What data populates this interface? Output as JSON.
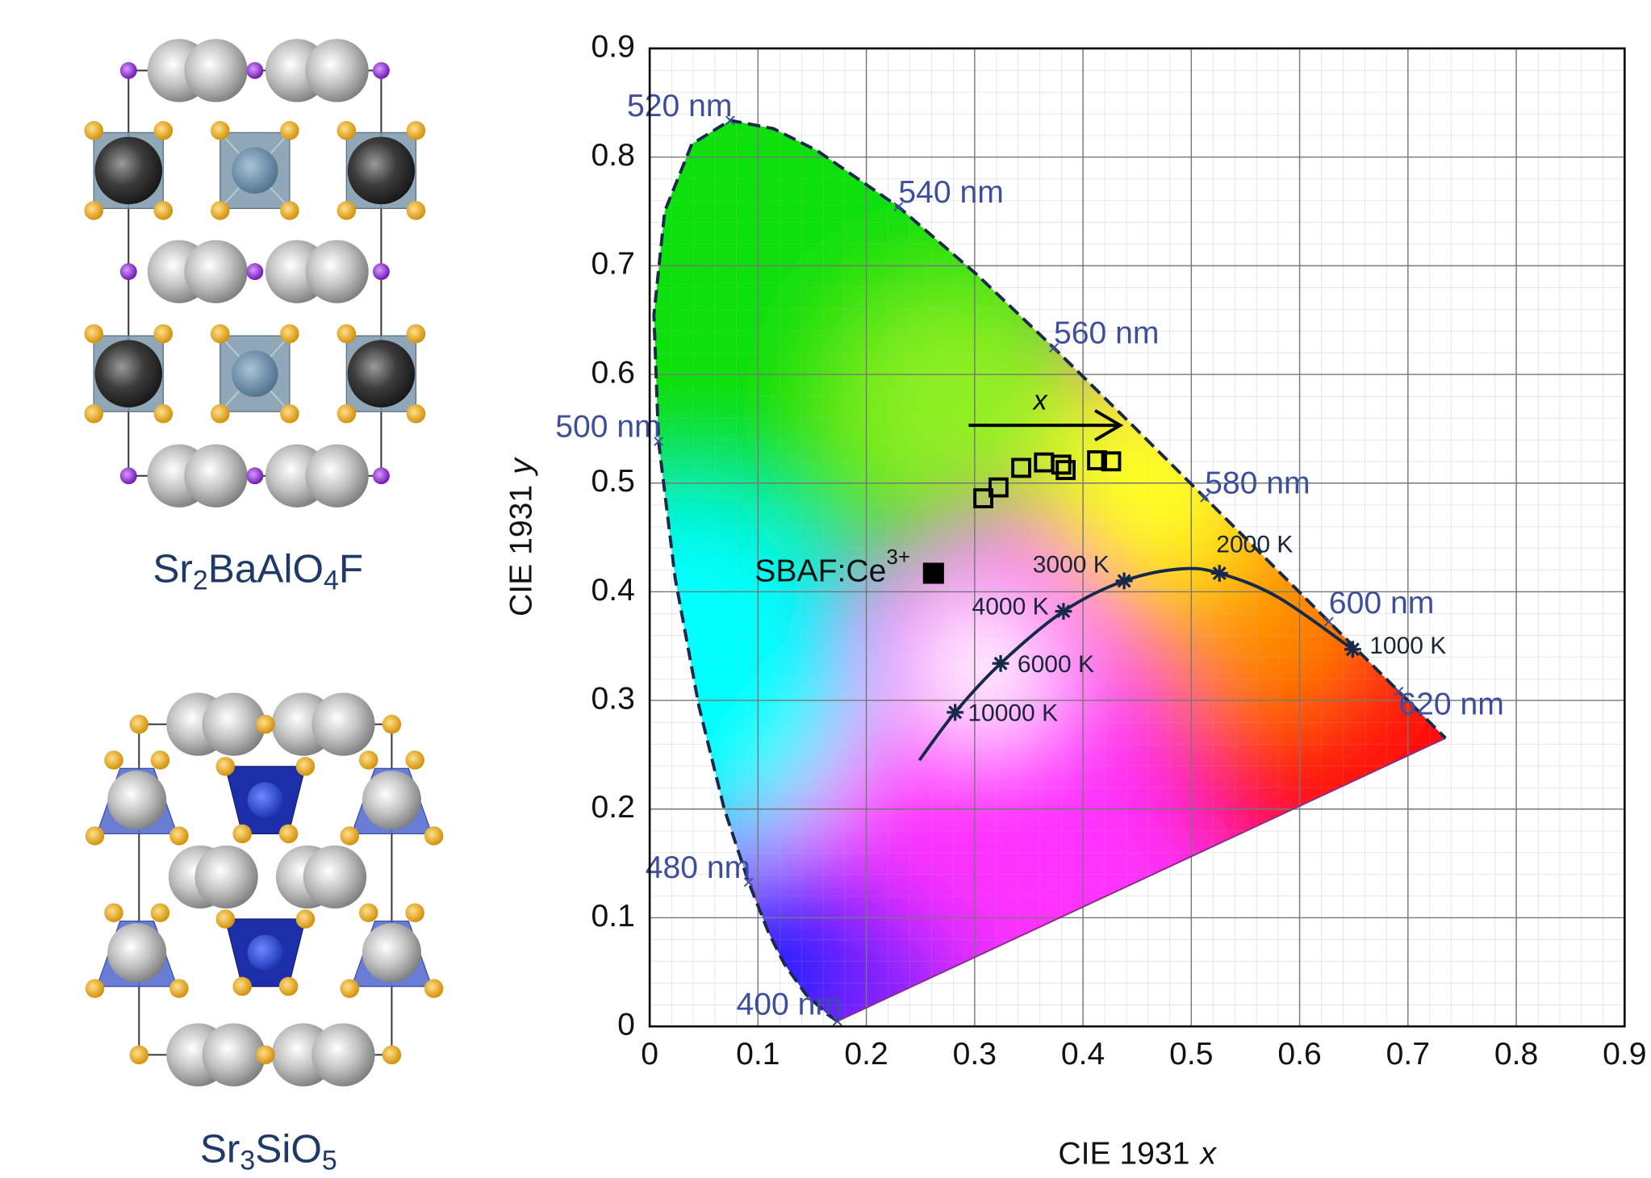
{
  "figure_labels": {
    "top": [
      "Sr",
      "2",
      "BaAlO",
      "4",
      "F"
    ],
    "bottom": [
      "Sr",
      "3",
      "SiO",
      "5"
    ]
  },
  "chart_data": {
    "type": "scatter",
    "x_label": "CIE 1931",
    "x_label_symbol": "x",
    "y_label": "CIE 1931",
    "y_label_symbol": "y",
    "xlim": [
      0,
      0.9
    ],
    "ylim": [
      0,
      0.9
    ],
    "xticks": [
      0,
      0.1,
      0.2,
      0.3,
      0.4,
      0.5,
      0.6,
      0.7,
      0.8,
      0.9
    ],
    "yticks": [
      0,
      0.1,
      0.2,
      0.3,
      0.4,
      0.5,
      0.6,
      0.7,
      0.8,
      0.9
    ],
    "grid": true,
    "spectral_locus": {
      "color": "#1a2a4a",
      "x": [
        0.1733,
        0.1644,
        0.144,
        0.1241,
        0.1096,
        0.0913,
        0.0687,
        0.0454,
        0.0235,
        0.0082,
        0.0039,
        0.0139,
        0.0389,
        0.0743,
        0.1142,
        0.1547,
        0.2296,
        0.3016,
        0.3731,
        0.4441,
        0.5125,
        0.5752,
        0.627,
        0.6915,
        0.719,
        0.7347
      ],
      "y": [
        0.0048,
        0.0109,
        0.0297,
        0.0578,
        0.0868,
        0.1327,
        0.2007,
        0.295,
        0.4127,
        0.5384,
        0.6548,
        0.7502,
        0.812,
        0.8338,
        0.8262,
        0.8059,
        0.7543,
        0.6923,
        0.6245,
        0.5547,
        0.4866,
        0.4242,
        0.3725,
        0.3083,
        0.2809,
        0.2653
      ]
    },
    "wavelength_marks": {
      "color": "#3d4f9c",
      "labels": [
        "400 nm",
        "480 nm",
        "500 nm",
        "520 nm",
        "540 nm",
        "560 nm",
        "580 nm",
        "600 nm",
        "620 nm"
      ],
      "x": [
        0.1733,
        0.0913,
        0.0082,
        0.0743,
        0.2296,
        0.3731,
        0.5125,
        0.627,
        0.6915
      ],
      "y": [
        0.0048,
        0.1327,
        0.5384,
        0.8338,
        0.7543,
        0.6245,
        0.4866,
        0.3725,
        0.3083
      ]
    },
    "planckian_locus": {
      "color": "#152a4a",
      "x": [
        0.249,
        0.282,
        0.324,
        0.382,
        0.438,
        0.49,
        0.526,
        0.58,
        0.649
      ],
      "y": [
        0.245,
        0.289,
        0.334,
        0.382,
        0.41,
        0.421,
        0.417,
        0.395,
        0.347
      ]
    },
    "temperature_points": {
      "labels": [
        "10000 K",
        "6000 K",
        "4000 K",
        "3000 K",
        "2000 K",
        "1000 K"
      ],
      "x": [
        0.282,
        0.324,
        0.382,
        0.438,
        0.526,
        0.649
      ],
      "y": [
        0.289,
        0.334,
        0.382,
        0.41,
        0.417,
        0.347
      ]
    },
    "measured_points": {
      "x": [
        0.308,
        0.322,
        0.343,
        0.364,
        0.38,
        0.384,
        0.413,
        0.426
      ],
      "y": [
        0.486,
        0.496,
        0.514,
        0.519,
        0.517,
        0.512,
        0.521,
        0.52
      ]
    },
    "sample": {
      "label": "SBAF:Ce",
      "label_superscript": "3+",
      "x": 0.262,
      "y": 0.417
    },
    "arrow_label": "x"
  }
}
